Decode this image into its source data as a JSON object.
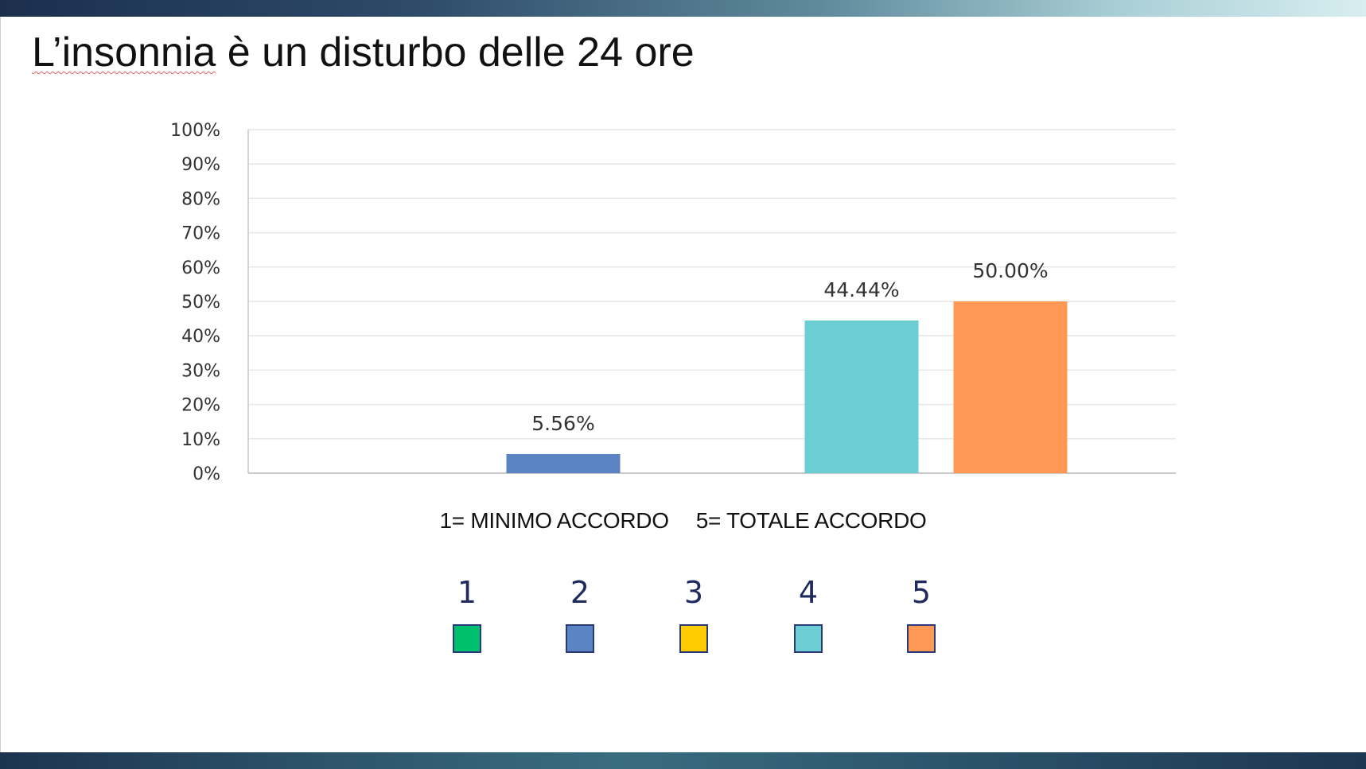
{
  "slide": {
    "title_first": "L’insonnia",
    "title_rest": " è un disturbo delle 24 ore"
  },
  "chart_data": {
    "type": "bar",
    "title": "",
    "xlabel": "",
    "ylabel": "",
    "ylim": [
      0,
      100
    ],
    "y_ticks": [
      "0%",
      "10%",
      "20%",
      "30%",
      "40%",
      "50%",
      "60%",
      "70%",
      "80%",
      "90%",
      "100%"
    ],
    "grid": true,
    "categories": [
      "1",
      "2",
      "3",
      "4",
      "5"
    ],
    "values": [
      0,
      5.56,
      0,
      44.44,
      50.0
    ],
    "value_labels": [
      "",
      "5.56%",
      "",
      "44.44%",
      "50.00%"
    ],
    "colors": [
      "#00c06e",
      "#5b84c4",
      "#ffcc00",
      "#6ccdd2",
      "#ff9955"
    ]
  },
  "scale_note": {
    "min": "1= MINIMO ACCORDO",
    "max": "5= TOTALE ACCORDO"
  },
  "legend": {
    "items": [
      {
        "label": "1",
        "color": "#00c06e"
      },
      {
        "label": "2",
        "color": "#5b84c4"
      },
      {
        "label": "3",
        "color": "#ffcc00"
      },
      {
        "label": "4",
        "color": "#6ccdd2"
      },
      {
        "label": "5",
        "color": "#ff9955"
      }
    ]
  }
}
